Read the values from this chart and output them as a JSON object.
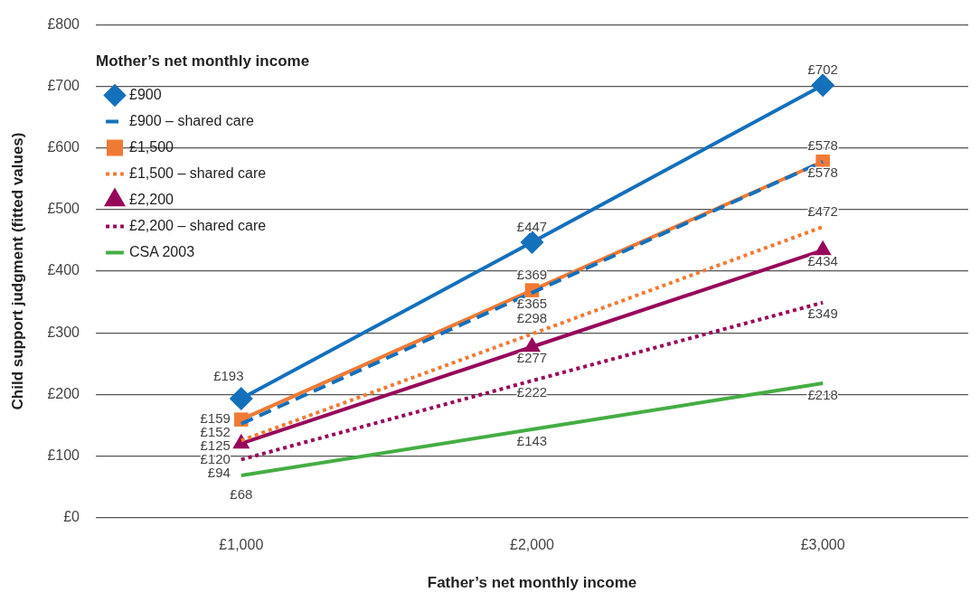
{
  "chart_data": {
    "type": "line",
    "xlabel": "Father’s net monthly income",
    "ylabel": "Child support judgment (fitted values)",
    "legend_title": "Mother’s net monthly income",
    "categories": [
      "£1,000",
      "£2,000",
      "£3,000"
    ],
    "ylim": [
      0,
      800
    ],
    "yticks": [
      {
        "value": 0,
        "label": "£0"
      },
      {
        "value": 100,
        "label": "£100"
      },
      {
        "value": 200,
        "label": "£200"
      },
      {
        "value": 300,
        "label": "£300"
      },
      {
        "value": 400,
        "label": "£400"
      },
      {
        "value": 500,
        "label": "£500"
      },
      {
        "value": 600,
        "label": "£600"
      },
      {
        "value": 700,
        "label": "£700"
      },
      {
        "value": 800,
        "label": "£800"
      }
    ],
    "grid": "y",
    "legend": "top left",
    "series": [
      {
        "name": "£900",
        "color": "#1570bb",
        "values": [
          193,
          447,
          702
        ],
        "marker": "diamond",
        "line_style": "solid",
        "value_labels": [
          "£193",
          "£447",
          "£702"
        ]
      },
      {
        "name": "£900 – shared care",
        "color": "#1570bb",
        "values": [
          152,
          365,
          578
        ],
        "marker": "none",
        "line_style": "dashed",
        "value_labels": [
          "£152",
          "£365",
          "£578"
        ]
      },
      {
        "name": "£1,500",
        "color": "#f07a35",
        "values": [
          159,
          369,
          578
        ],
        "marker": "square",
        "line_style": "solid",
        "value_labels": [
          "£159",
          "£369",
          "£578"
        ]
      },
      {
        "name": "£1,500 – shared care",
        "color": "#f07a35",
        "values": [
          125,
          298,
          472
        ],
        "marker": "none",
        "line_style": "dotted",
        "value_labels": [
          "£125",
          "£298",
          "£472"
        ]
      },
      {
        "name": "£2,200",
        "color": "#96075a",
        "values": [
          120,
          277,
          434
        ],
        "marker": "triangle",
        "line_style": "solid",
        "value_labels": [
          "£120",
          "£277",
          "£434"
        ]
      },
      {
        "name": "£2,200 – shared care",
        "color": "#96075a",
        "values": [
          94,
          222,
          349
        ],
        "marker": "none",
        "line_style": "dotted",
        "value_labels": [
          "£94",
          "£222",
          "£349"
        ]
      },
      {
        "name": "CSA 2003",
        "color": "#45ad44",
        "values": [
          68,
          143,
          218
        ],
        "marker": "none",
        "line_style": "solid",
        "value_labels": [
          "£68",
          "£143",
          "£218"
        ]
      }
    ]
  }
}
